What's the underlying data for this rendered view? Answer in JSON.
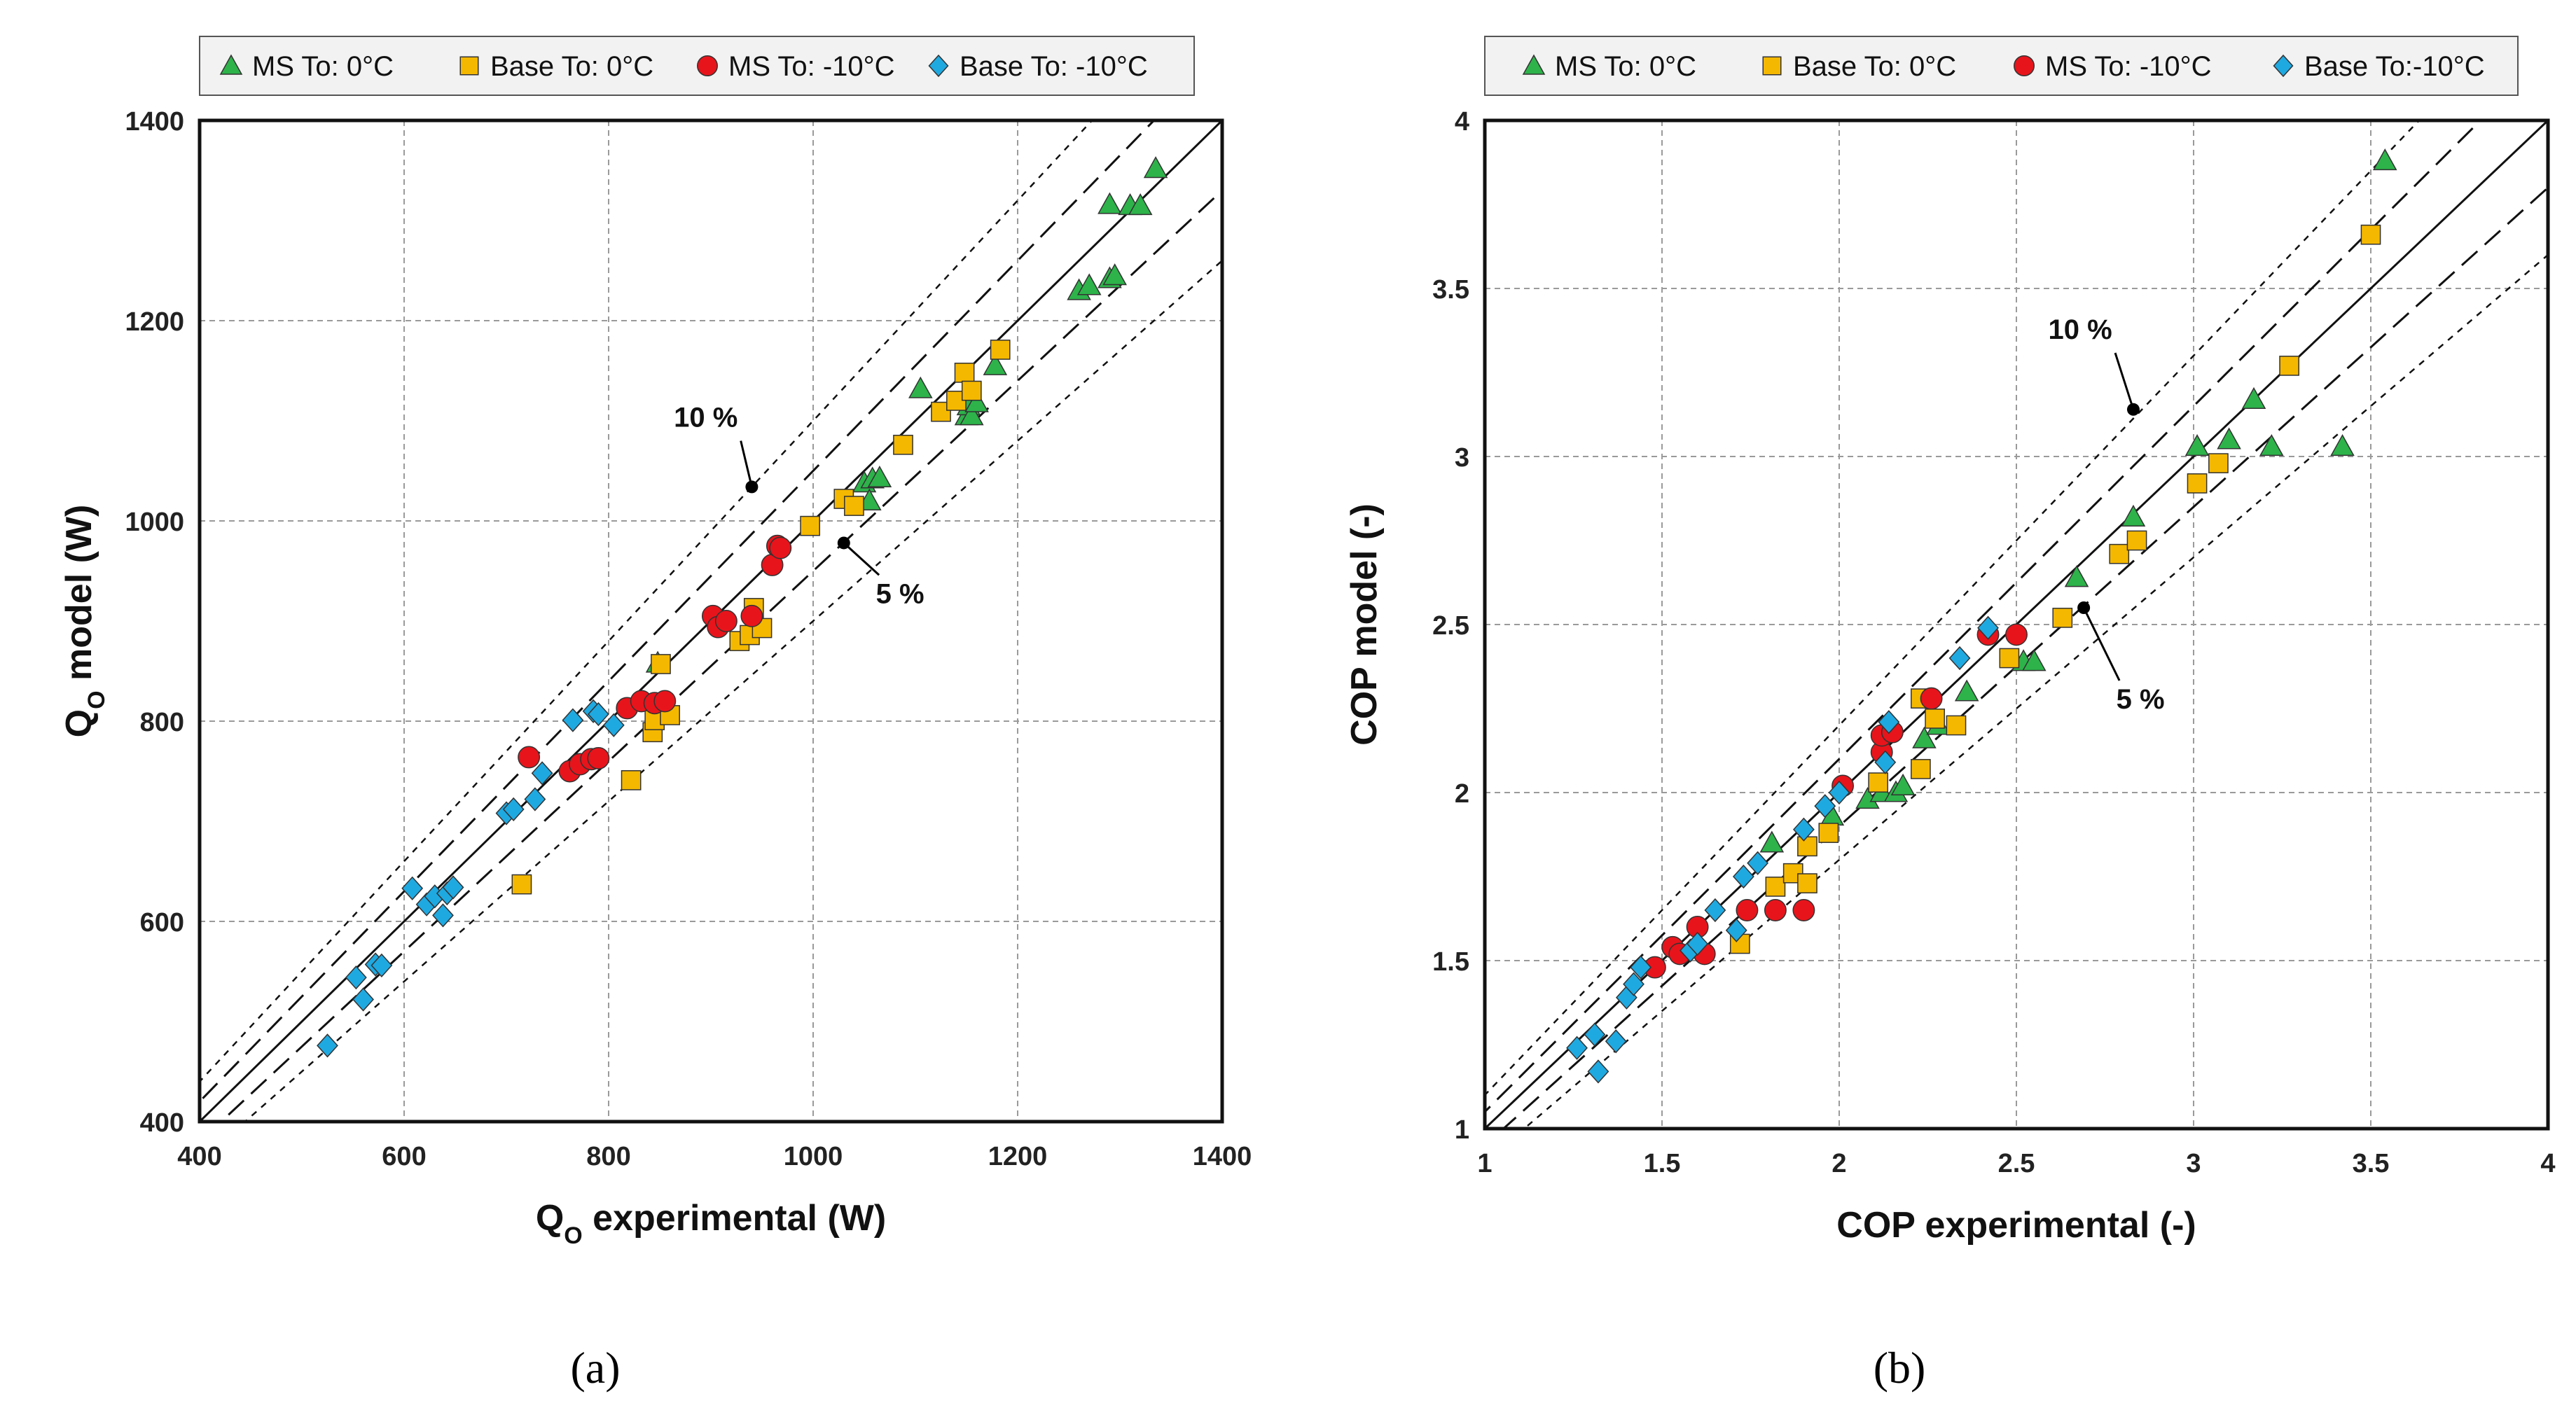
{
  "colors": {
    "ms0": "#2db34a",
    "base0": "#f5b800",
    "ms10": "#e8141b",
    "base10": "#1fa9e1",
    "grid": "#9a9a9a",
    "line": "#111111"
  },
  "chart_data": [
    {
      "type": "scatter",
      "caption": "(a)",
      "xlabel_main": "Q",
      "xlabel_sub": "O",
      "xlabel_rest": " experimental (W)",
      "ylabel_main": "Q",
      "ylabel_sub": "O",
      "ylabel_rest": " model (W)",
      "xlim": [
        400,
        1400
      ],
      "ylim": [
        400,
        1400
      ],
      "xticks": [
        "400",
        "600",
        "800",
        "1000",
        "1200",
        "1400"
      ],
      "yticks": [
        "400",
        "600",
        "800",
        "1000",
        "1200",
        "1400"
      ],
      "legend": [
        "MS To: 0°C",
        "Base To: 0°C",
        "MS To: -10°C",
        "Base To: -10°C"
      ],
      "annotations": [
        {
          "text": "10 %",
          "point": [
            940,
            1034
          ],
          "label_at": [
            895,
            1094
          ]
        },
        {
          "text": "5 %",
          "point": [
            1030,
            978
          ],
          "label_at": [
            1085,
            918
          ]
        }
      ],
      "series": [
        {
          "name": "MS To: 0°C",
          "marker": "triangle",
          "color": "ms0",
          "points": [
            [
              848,
              858
            ],
            [
              1050,
              1038
            ],
            [
              1058,
              1042
            ],
            [
              1065,
              1043
            ],
            [
              1055,
              1020
            ],
            [
              1105,
              1132
            ],
            [
              1150,
              1105
            ],
            [
              1152,
              1115
            ],
            [
              1155,
              1105
            ],
            [
              1155,
              1120
            ],
            [
              1160,
              1118
            ],
            [
              1178,
              1155
            ],
            [
              1260,
              1230
            ],
            [
              1270,
              1235
            ],
            [
              1290,
              1242
            ],
            [
              1295,
              1245
            ],
            [
              1290,
              1316
            ],
            [
              1310,
              1315
            ],
            [
              1320,
              1315
            ],
            [
              1335,
              1352
            ]
          ]
        },
        {
          "name": "Base To: 0°C",
          "marker": "square",
          "color": "base0",
          "points": [
            [
              715,
              637
            ],
            [
              822,
              741
            ],
            [
              843,
              789
            ],
            [
              845,
              801
            ],
            [
              851,
              857
            ],
            [
              860,
              806
            ],
            [
              928,
              880
            ],
            [
              938,
              886
            ],
            [
              942,
              913
            ],
            [
              950,
              893
            ],
            [
              997,
              995
            ],
            [
              1030,
              1022
            ],
            [
              1040,
              1015
            ],
            [
              1088,
              1076
            ],
            [
              1125,
              1109
            ],
            [
              1140,
              1120
            ],
            [
              1148,
              1148
            ],
            [
              1155,
              1130
            ],
            [
              1183,
              1171
            ]
          ]
        },
        {
          "name": "MS To: -10°C",
          "marker": "circle",
          "color": "ms10",
          "points": [
            [
              722,
              764
            ],
            [
              762,
              750
            ],
            [
              772,
              757
            ],
            [
              783,
              762
            ],
            [
              790,
              763
            ],
            [
              818,
              813
            ],
            [
              832,
              820
            ],
            [
              845,
              818
            ],
            [
              855,
              820
            ],
            [
              902,
              905
            ],
            [
              907,
              894
            ],
            [
              915,
              900
            ],
            [
              940,
              905
            ],
            [
              960,
              956
            ],
            [
              965,
              975
            ],
            [
              968,
              973
            ]
          ]
        },
        {
          "name": "Base To: -10°C",
          "marker": "diamond",
          "color": "base10",
          "points": [
            [
              525,
              476
            ],
            [
              553,
              544
            ],
            [
              560,
              522
            ],
            [
              572,
              557
            ],
            [
              578,
              556
            ],
            [
              608,
              633
            ],
            [
              622,
              617
            ],
            [
              630,
              625
            ],
            [
              638,
              606
            ],
            [
              642,
              628
            ],
            [
              648,
              634
            ],
            [
              700,
              708
            ],
            [
              707,
              712
            ],
            [
              728,
              722
            ],
            [
              735,
              748
            ],
            [
              765,
              801
            ],
            [
              785,
              810
            ],
            [
              790,
              807
            ],
            [
              805,
              796
            ]
          ]
        }
      ]
    },
    {
      "type": "scatter",
      "caption": "(b)",
      "xlabel_main": "COP experimental (-)",
      "ylabel_main": "COP model (-)",
      "xlim": [
        1,
        4
      ],
      "ylim": [
        1,
        4
      ],
      "xticks": [
        "1",
        "1.5",
        "2",
        "2.5",
        "3",
        "3.5",
        "4"
      ],
      "yticks": [
        "1",
        "1.5",
        "2",
        "2.5",
        "3",
        "3.5",
        "4"
      ],
      "legend": [
        "MS To: 0°C",
        "Base To: 0°C",
        "MS To: -10°C",
        "Base To:-10°C"
      ],
      "annotations": [
        {
          "text": "10 %",
          "point": [
            2.83,
            3.14
          ],
          "label_at": [
            2.68,
            3.35
          ]
        },
        {
          "text": "5 %",
          "point": [
            2.69,
            2.55
          ],
          "label_at": [
            2.85,
            2.25
          ]
        }
      ],
      "series": [
        {
          "name": "MS To: 0°C",
          "marker": "triangle",
          "color": "ms0",
          "points": [
            [
              1.81,
              1.85
            ],
            [
              1.98,
              1.93
            ],
            [
              2.08,
              1.98
            ],
            [
              2.12,
              2.0
            ],
            [
              2.16,
              2.0
            ],
            [
              2.18,
              2.02
            ],
            [
              2.24,
              2.16
            ],
            [
              2.28,
              2.2
            ],
            [
              2.36,
              2.3
            ],
            [
              2.52,
              2.39
            ],
            [
              2.55,
              2.39
            ],
            [
              2.67,
              2.64
            ],
            [
              2.83,
              2.82
            ],
            [
              3.01,
              3.03
            ],
            [
              3.1,
              3.05
            ],
            [
              3.17,
              3.17
            ],
            [
              3.22,
              3.03
            ],
            [
              3.42,
              3.03
            ],
            [
              3.54,
              3.88
            ]
          ]
        },
        {
          "name": "Base To: 0°C",
          "marker": "square",
          "color": "base0",
          "points": [
            [
              1.72,
              1.55
            ],
            [
              1.82,
              1.72
            ],
            [
              1.87,
              1.76
            ],
            [
              1.91,
              1.73
            ],
            [
              1.91,
              1.84
            ],
            [
              1.97,
              1.88
            ],
            [
              2.11,
              2.03
            ],
            [
              2.23,
              2.07
            ],
            [
              2.23,
              2.28
            ],
            [
              2.27,
              2.22
            ],
            [
              2.33,
              2.2
            ],
            [
              2.48,
              2.4
            ],
            [
              2.63,
              2.52
            ],
            [
              2.79,
              2.71
            ],
            [
              2.84,
              2.75
            ],
            [
              3.01,
              2.92
            ],
            [
              3.07,
              2.98
            ],
            [
              3.27,
              3.27
            ],
            [
              3.5,
              3.66
            ]
          ]
        },
        {
          "name": "MS To: -10°C",
          "marker": "circle",
          "color": "ms10",
          "points": [
            [
              1.48,
              1.48
            ],
            [
              1.53,
              1.54
            ],
            [
              1.55,
              1.52
            ],
            [
              1.6,
              1.6
            ],
            [
              1.62,
              1.52
            ],
            [
              1.74,
              1.65
            ],
            [
              1.82,
              1.65
            ],
            [
              1.9,
              1.65
            ],
            [
              2.01,
              2.02
            ],
            [
              2.12,
              2.12
            ],
            [
              2.12,
              2.17
            ],
            [
              2.15,
              2.18
            ],
            [
              2.26,
              2.28
            ],
            [
              2.42,
              2.47
            ],
            [
              2.5,
              2.47
            ]
          ]
        },
        {
          "name": "Base To:-10°C",
          "marker": "diamond",
          "color": "base10",
          "points": [
            [
              1.26,
              1.24
            ],
            [
              1.31,
              1.28
            ],
            [
              1.32,
              1.17
            ],
            [
              1.37,
              1.26
            ],
            [
              1.4,
              1.39
            ],
            [
              1.42,
              1.43
            ],
            [
              1.44,
              1.48
            ],
            [
              1.58,
              1.53
            ],
            [
              1.6,
              1.55
            ],
            [
              1.65,
              1.65
            ],
            [
              1.71,
              1.59
            ],
            [
              1.73,
              1.75
            ],
            [
              1.77,
              1.79
            ],
            [
              1.9,
              1.89
            ],
            [
              1.96,
              1.96
            ],
            [
              2.0,
              2.0
            ],
            [
              2.13,
              2.09
            ],
            [
              2.14,
              2.21
            ],
            [
              2.34,
              2.4
            ],
            [
              2.42,
              2.49
            ]
          ]
        }
      ]
    }
  ]
}
